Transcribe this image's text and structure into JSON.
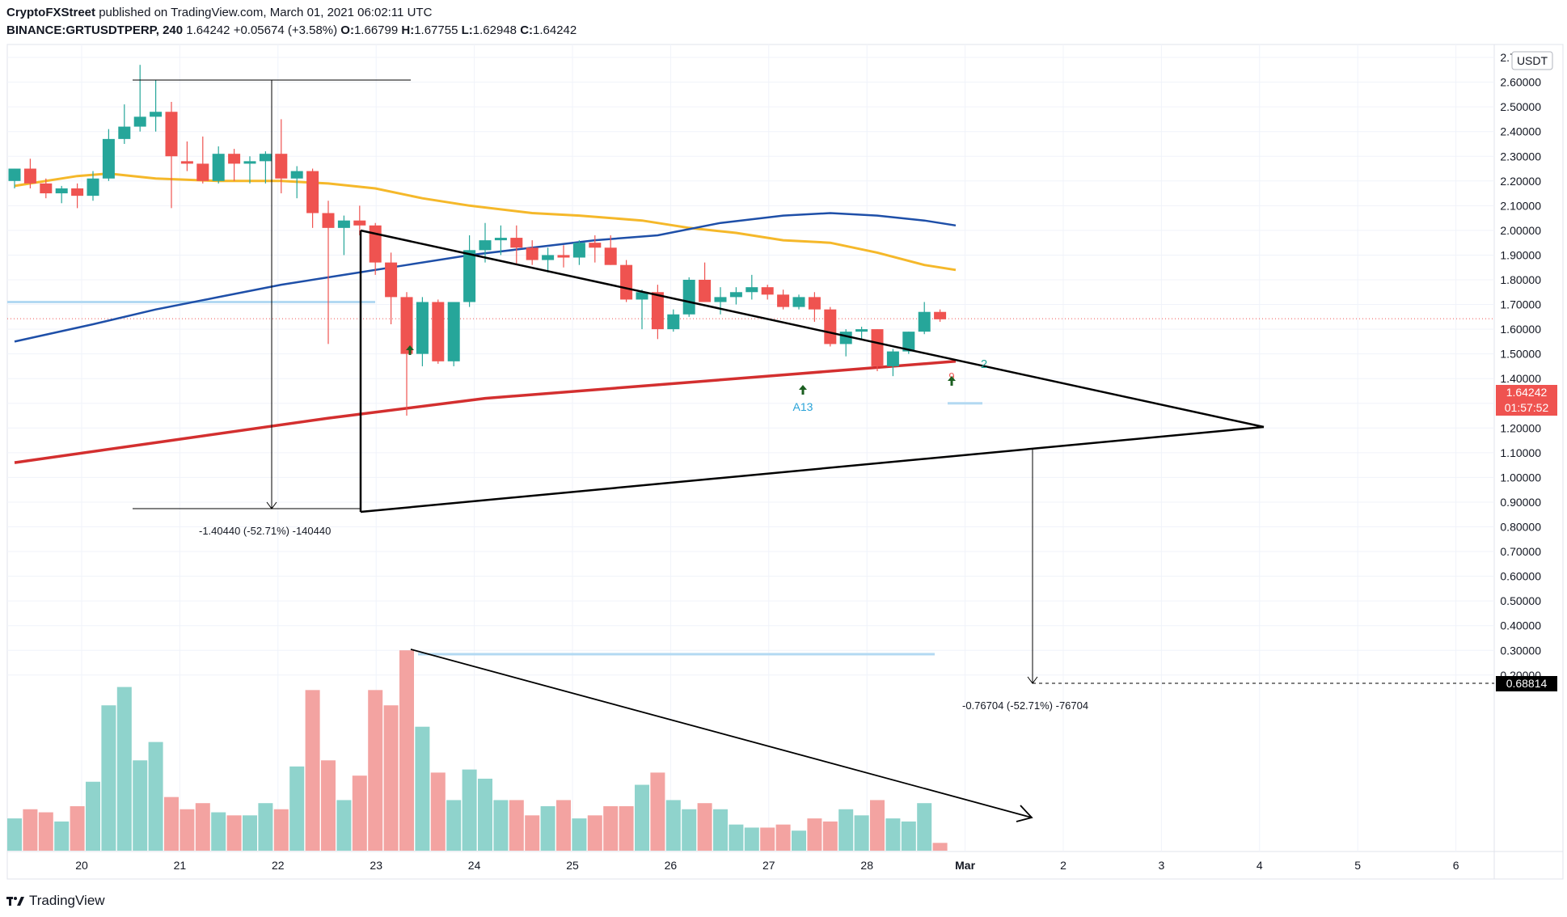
{
  "header": {
    "publisher": "CryptoFXStreet",
    "published_text": "published on TradingView.com, March 01, 2021 06:02:11 UTC",
    "symbol": "BINANCE:GRTUSDTPERP, 240",
    "last": "1.64242",
    "change": "+0.05674 (+3.58%)",
    "o_label": "O:",
    "o": "1.66799",
    "h_label": "H:",
    "h": "1.67755",
    "l_label": "L:",
    "l": "1.62948",
    "c_label": "C:",
    "c": "1.64242"
  },
  "footer": {
    "brand": "TradingView",
    "icon": "tradingview-logo-icon"
  },
  "colors": {
    "up": "#26a69a",
    "down": "#ef5350",
    "vol_up": "#8fd3cc",
    "vol_down": "#f3a3a1",
    "ma_yellow": "#f5b82a",
    "ma_blue": "#1e4fa8",
    "ma_red": "#d32f2f",
    "hline": "#b3d9f2",
    "grid": "#f0f3fa"
  },
  "chart_data": {
    "type": "candlestick",
    "currency": "USDT",
    "price_badge": "1.64242",
    "countdown_badge": "01:57:52",
    "target_badge": "0.68814",
    "ylim": [
      0.15,
      2.75
    ],
    "y_ticks": [
      "2.70000",
      "2.60000",
      "2.50000",
      "2.40000",
      "2.30000",
      "2.20000",
      "2.10000",
      "2.00000",
      "1.90000",
      "1.80000",
      "1.70000",
      "1.60000",
      "1.50000",
      "1.40000",
      "1.30000",
      "1.20000",
      "1.10000",
      "1.00000",
      "0.90000",
      "0.80000",
      "0.70000",
      "0.60000",
      "0.50000",
      "0.40000",
      "0.30000",
      "0.20000"
    ],
    "x_ticks": [
      "20",
      "21",
      "22",
      "23",
      "24",
      "25",
      "26",
      "27",
      "28",
      "Mar",
      "2",
      "3",
      "4",
      "5",
      "6"
    ],
    "candles": [
      {
        "o": 2.2,
        "h": 2.25,
        "l": 2.17,
        "c": 2.25
      },
      {
        "o": 2.25,
        "h": 2.29,
        "l": 2.17,
        "c": 2.19
      },
      {
        "o": 2.19,
        "h": 2.21,
        "l": 2.13,
        "c": 2.15
      },
      {
        "o": 2.15,
        "h": 2.18,
        "l": 2.11,
        "c": 2.17
      },
      {
        "o": 2.17,
        "h": 2.19,
        "l": 2.09,
        "c": 2.14
      },
      {
        "o": 2.14,
        "h": 2.24,
        "l": 2.12,
        "c": 2.21
      },
      {
        "o": 2.21,
        "h": 2.41,
        "l": 2.2,
        "c": 2.37
      },
      {
        "o": 2.37,
        "h": 2.51,
        "l": 2.35,
        "c": 2.42
      },
      {
        "o": 2.42,
        "h": 2.67,
        "l": 2.4,
        "c": 2.46
      },
      {
        "o": 2.46,
        "h": 2.61,
        "l": 2.4,
        "c": 2.48
      },
      {
        "o": 2.48,
        "h": 2.52,
        "l": 2.09,
        "c": 2.3
      },
      {
        "o": 2.28,
        "h": 2.36,
        "l": 2.24,
        "c": 2.27
      },
      {
        "o": 2.27,
        "h": 2.38,
        "l": 2.19,
        "c": 2.2
      },
      {
        "o": 2.2,
        "h": 2.34,
        "l": 2.19,
        "c": 2.31
      },
      {
        "o": 2.31,
        "h": 2.33,
        "l": 2.2,
        "c": 2.27
      },
      {
        "o": 2.27,
        "h": 2.3,
        "l": 2.19,
        "c": 2.28
      },
      {
        "o": 2.28,
        "h": 2.32,
        "l": 2.19,
        "c": 2.31
      },
      {
        "o": 2.31,
        "h": 2.45,
        "l": 2.15,
        "c": 2.21
      },
      {
        "o": 2.21,
        "h": 2.26,
        "l": 2.13,
        "c": 2.24
      },
      {
        "o": 2.24,
        "h": 2.25,
        "l": 2.01,
        "c": 2.07
      },
      {
        "o": 2.07,
        "h": 2.12,
        "l": 1.54,
        "c": 2.01
      },
      {
        "o": 2.01,
        "h": 2.06,
        "l": 1.9,
        "c": 2.04
      },
      {
        "o": 2.04,
        "h": 2.1,
        "l": 1.98,
        "c": 2.02
      },
      {
        "o": 2.02,
        "h": 2.03,
        "l": 1.82,
        "c": 1.87
      },
      {
        "o": 1.87,
        "h": 1.91,
        "l": 1.62,
        "c": 1.73
      },
      {
        "o": 1.73,
        "h": 1.75,
        "l": 1.25,
        "c": 1.5
      },
      {
        "o": 1.5,
        "h": 1.73,
        "l": 1.45,
        "c": 1.71
      },
      {
        "o": 1.71,
        "h": 1.72,
        "l": 1.46,
        "c": 1.47
      },
      {
        "o": 1.47,
        "h": 1.71,
        "l": 1.45,
        "c": 1.71
      },
      {
        "o": 1.71,
        "h": 1.98,
        "l": 1.69,
        "c": 1.92
      },
      {
        "o": 1.92,
        "h": 2.03,
        "l": 1.87,
        "c": 1.96
      },
      {
        "o": 1.96,
        "h": 2.02,
        "l": 1.9,
        "c": 1.97
      },
      {
        "o": 1.97,
        "h": 2.02,
        "l": 1.86,
        "c": 1.93
      },
      {
        "o": 1.93,
        "h": 1.96,
        "l": 1.86,
        "c": 1.88
      },
      {
        "o": 1.88,
        "h": 1.93,
        "l": 1.83,
        "c": 1.9
      },
      {
        "o": 1.9,
        "h": 1.94,
        "l": 1.85,
        "c": 1.89
      },
      {
        "o": 1.89,
        "h": 1.96,
        "l": 1.86,
        "c": 1.95
      },
      {
        "o": 1.95,
        "h": 1.98,
        "l": 1.87,
        "c": 1.93
      },
      {
        "o": 1.93,
        "h": 1.98,
        "l": 1.86,
        "c": 1.86
      },
      {
        "o": 1.86,
        "h": 1.88,
        "l": 1.71,
        "c": 1.72
      },
      {
        "o": 1.72,
        "h": 1.76,
        "l": 1.6,
        "c": 1.75
      },
      {
        "o": 1.75,
        "h": 1.78,
        "l": 1.56,
        "c": 1.6
      },
      {
        "o": 1.6,
        "h": 1.68,
        "l": 1.59,
        "c": 1.66
      },
      {
        "o": 1.66,
        "h": 1.81,
        "l": 1.65,
        "c": 1.8
      },
      {
        "o": 1.8,
        "h": 1.87,
        "l": 1.71,
        "c": 1.71
      },
      {
        "o": 1.71,
        "h": 1.77,
        "l": 1.66,
        "c": 1.73
      },
      {
        "o": 1.73,
        "h": 1.77,
        "l": 1.7,
        "c": 1.75
      },
      {
        "o": 1.75,
        "h": 1.82,
        "l": 1.72,
        "c": 1.77
      },
      {
        "o": 1.77,
        "h": 1.78,
        "l": 1.72,
        "c": 1.74
      },
      {
        "o": 1.74,
        "h": 1.76,
        "l": 1.68,
        "c": 1.69
      },
      {
        "o": 1.69,
        "h": 1.74,
        "l": 1.68,
        "c": 1.73
      },
      {
        "o": 1.73,
        "h": 1.75,
        "l": 1.63,
        "c": 1.68
      },
      {
        "o": 1.68,
        "h": 1.69,
        "l": 1.53,
        "c": 1.54
      },
      {
        "o": 1.54,
        "h": 1.6,
        "l": 1.49,
        "c": 1.59
      },
      {
        "o": 1.59,
        "h": 1.61,
        "l": 1.56,
        "c": 1.6
      },
      {
        "o": 1.6,
        "h": 1.6,
        "l": 1.43,
        "c": 1.45
      },
      {
        "o": 1.45,
        "h": 1.52,
        "l": 1.41,
        "c": 1.51
      },
      {
        "o": 1.51,
        "h": 1.59,
        "l": 1.5,
        "c": 1.59
      },
      {
        "o": 1.59,
        "h": 1.71,
        "l": 1.58,
        "c": 1.67
      },
      {
        "o": 1.67,
        "h": 1.68,
        "l": 1.63,
        "c": 1.64
      }
    ],
    "volumes": [
      0.25,
      0.28,
      0.27,
      0.24,
      0.29,
      0.37,
      0.62,
      0.68,
      0.44,
      0.5,
      0.32,
      0.28,
      0.3,
      0.27,
      0.26,
      0.26,
      0.3,
      0.28,
      0.42,
      0.67,
      0.44,
      0.31,
      0.39,
      0.67,
      0.62,
      0.8,
      0.55,
      0.4,
      0.31,
      0.41,
      0.38,
      0.31,
      0.31,
      0.26,
      0.29,
      0.31,
      0.25,
      0.26,
      0.29,
      0.29,
      0.36,
      0.4,
      0.31,
      0.28,
      0.3,
      0.28,
      0.23,
      0.22,
      0.22,
      0.23,
      0.21,
      0.25,
      0.24,
      0.28,
      0.26,
      0.31,
      0.25,
      0.24,
      0.3,
      0.17
    ],
    "ma_yellow": [
      [
        0,
        2.18
      ],
      [
        4,
        2.22
      ],
      [
        6,
        2.23
      ],
      [
        9,
        2.21
      ],
      [
        13,
        2.2
      ],
      [
        17,
        2.2
      ],
      [
        20,
        2.19
      ],
      [
        23,
        2.17
      ],
      [
        26,
        2.13
      ],
      [
        29,
        2.1
      ],
      [
        33,
        2.07
      ],
      [
        36,
        2.06
      ],
      [
        40,
        2.04
      ],
      [
        43,
        2.01
      ],
      [
        46,
        1.99
      ],
      [
        49,
        1.96
      ],
      [
        52,
        1.95
      ],
      [
        55,
        1.91
      ],
      [
        58,
        1.86
      ],
      [
        60,
        1.84
      ]
    ],
    "ma_blue": [
      [
        0,
        1.55
      ],
      [
        5,
        1.62
      ],
      [
        9,
        1.68
      ],
      [
        13,
        1.73
      ],
      [
        17,
        1.78
      ],
      [
        21,
        1.82
      ],
      [
        25,
        1.86
      ],
      [
        29,
        1.9
      ],
      [
        33,
        1.93
      ],
      [
        37,
        1.96
      ],
      [
        41,
        1.98
      ],
      [
        45,
        2.03
      ],
      [
        49,
        2.06
      ],
      [
        52,
        2.07
      ],
      [
        55,
        2.06
      ],
      [
        58,
        2.04
      ],
      [
        60,
        2.02
      ]
    ],
    "ma_red": [
      [
        0,
        1.06
      ],
      [
        10,
        1.15
      ],
      [
        20,
        1.24
      ],
      [
        30,
        1.32
      ],
      [
        40,
        1.37
      ],
      [
        50,
        1.42
      ],
      [
        60,
        1.47
      ]
    ],
    "annotations": {
      "measure_top_label": "-1.40440 (-52.71%) -140440",
      "measure_bottom_label": "-0.76704 (-52.71%) -76704",
      "td_nine_1": "9",
      "td_nine_2": "9",
      "td_two": "2",
      "a13": "A13"
    }
  }
}
